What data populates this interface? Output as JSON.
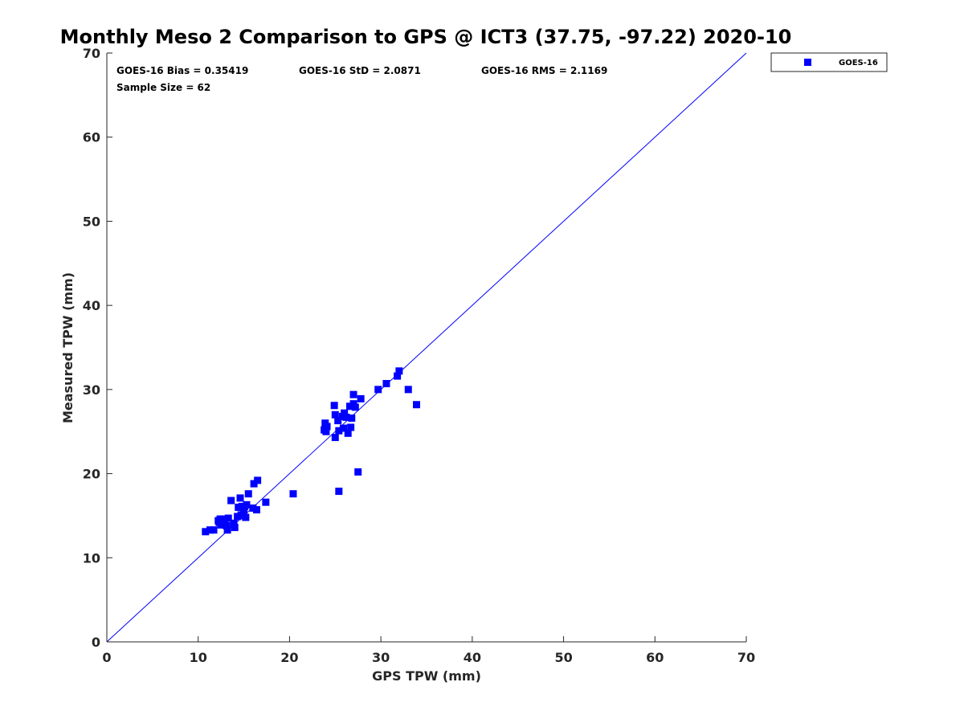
{
  "chart_data": {
    "type": "scatter",
    "title": "Monthly Meso 2 Comparison to GPS @ ICT3 (37.75, -97.22) 2020-10",
    "xlabel": "GPS TPW (mm)",
    "ylabel": "Measured TPW (mm)",
    "xlim": [
      0,
      70
    ],
    "ylim": [
      0,
      70
    ],
    "xticks": [
      0,
      10,
      20,
      30,
      40,
      50,
      60,
      70
    ],
    "yticks": [
      0,
      10,
      20,
      30,
      40,
      50,
      60,
      70
    ],
    "grid": false,
    "legend_position": "outside-top-right",
    "stats": {
      "bias": "GOES-16 Bias = 0.35419",
      "std": "GOES-16 StD = 2.0871",
      "rms": "GOES-16 RMS = 2.1169",
      "sample": "Sample Size = 62"
    },
    "reference_line": {
      "x": [
        0,
        70
      ],
      "y": [
        0,
        70
      ],
      "color": "#0000ff"
    },
    "series": [
      {
        "name": "GOES-16",
        "color": "#0000ff",
        "marker": "square",
        "points": [
          [
            10.8,
            13.1
          ],
          [
            11.3,
            13.3
          ],
          [
            11.7,
            13.3
          ],
          [
            12.2,
            14.4
          ],
          [
            12.3,
            14.2
          ],
          [
            12.5,
            13.9
          ],
          [
            12.7,
            14.6
          ],
          [
            12.8,
            14.1
          ],
          [
            12.9,
            14.4
          ],
          [
            13.1,
            13.8
          ],
          [
            13.2,
            13.3
          ],
          [
            13.3,
            14.7
          ],
          [
            13.6,
            16.8
          ],
          [
            13.9,
            14.1
          ],
          [
            14.0,
            13.6
          ],
          [
            14.3,
            14.9
          ],
          [
            14.4,
            16.0
          ],
          [
            14.6,
            17.1
          ],
          [
            14.7,
            15.1
          ],
          [
            14.8,
            16.1
          ],
          [
            15.0,
            15.4
          ],
          [
            15.2,
            14.8
          ],
          [
            15.3,
            16.3
          ],
          [
            15.5,
            17.6
          ],
          [
            16.0,
            15.9
          ],
          [
            16.1,
            18.8
          ],
          [
            16.4,
            15.7
          ],
          [
            16.5,
            19.2
          ],
          [
            17.4,
            16.6
          ],
          [
            20.4,
            17.6
          ],
          [
            23.8,
            25.2
          ],
          [
            23.9,
            26.0
          ],
          [
            24.0,
            25.0
          ],
          [
            24.1,
            25.6
          ],
          [
            24.9,
            28.1
          ],
          [
            25.0,
            24.3
          ],
          [
            25.0,
            27.0
          ],
          [
            25.3,
            26.3
          ],
          [
            25.4,
            25.1
          ],
          [
            25.4,
            17.9
          ],
          [
            25.8,
            26.8
          ],
          [
            25.9,
            25.4
          ],
          [
            26.0,
            27.2
          ],
          [
            26.2,
            26.7
          ],
          [
            26.4,
            24.8
          ],
          [
            26.6,
            28.0
          ],
          [
            26.7,
            25.5
          ],
          [
            26.8,
            26.6
          ],
          [
            27.0,
            28.3
          ],
          [
            27.0,
            29.4
          ],
          [
            27.2,
            27.9
          ],
          [
            27.5,
            20.2
          ],
          [
            27.8,
            28.9
          ],
          [
            29.7,
            30.0
          ],
          [
            30.6,
            30.7
          ],
          [
            31.8,
            31.6
          ],
          [
            32.0,
            32.2
          ],
          [
            33.0,
            30.0
          ],
          [
            33.9,
            28.2
          ],
          [
            14.9,
            15.0
          ],
          [
            12.4,
            14.6
          ],
          [
            15.1,
            16.1
          ]
        ]
      }
    ]
  }
}
